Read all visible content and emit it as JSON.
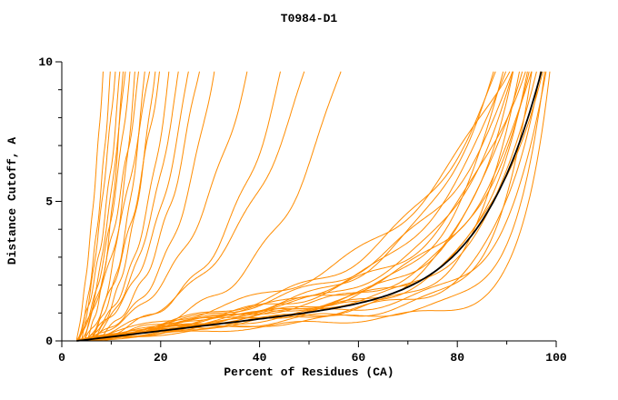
{
  "chart_data": {
    "type": "line",
    "title": "T0984-D1",
    "xlabel": "Percent of Residues (CA)",
    "ylabel": "Distance Cutoff, A",
    "xlim": [
      0,
      100
    ],
    "ylim": [
      0,
      10
    ],
    "x_major_ticks": [
      0,
      20,
      40,
      60,
      80,
      100
    ],
    "x_minor_step": 10,
    "y_major_ticks": [
      0,
      5,
      10
    ],
    "y_minor_step": 1,
    "grid": false,
    "legend": "none",
    "colors": {
      "model": "#FF8C00",
      "reference": "#000000",
      "axis": "#000000"
    },
    "curve_model": "y(u)=lin*u+(10-lin)*u^pow (+small sinusoidal jitter jit,ph); x(u)=x0+(x_end-x0)*u, u in [0,1]; curve clipped at y_top",
    "y_top": 9.65,
    "reference_series": {
      "name": "reference",
      "x0": 3.0,
      "x_end": 97.5,
      "lin": 2.0,
      "pow": 8.0,
      "jit": 0,
      "ph": 0
    },
    "series": [
      {
        "name": "model-01",
        "x0": 3.0,
        "x_end": 8.5,
        "lin": 5.0,
        "pow": 2.0,
        "jit": 0.15,
        "ph": 1.0
      },
      {
        "name": "model-02",
        "x0": 3.5,
        "x_end": 10.0,
        "lin": 4.5,
        "pow": 2.2,
        "jit": 0.2,
        "ph": 2.0
      },
      {
        "name": "model-03",
        "x0": 4.0,
        "x_end": 11.0,
        "lin": 5.5,
        "pow": 1.8,
        "jit": 0.15,
        "ph": 0.5
      },
      {
        "name": "model-04",
        "x0": 3.0,
        "x_end": 12.0,
        "lin": 4.0,
        "pow": 2.5,
        "jit": 0.25,
        "ph": 3.0
      },
      {
        "name": "model-05",
        "x0": 5.0,
        "x_end": 12.5,
        "lin": 3.5,
        "pow": 2.8,
        "jit": 0.2,
        "ph": 4.0
      },
      {
        "name": "model-06",
        "x0": 4.5,
        "x_end": 13.0,
        "lin": 5.0,
        "pow": 2.0,
        "jit": 0.1,
        "ph": 5.0
      },
      {
        "name": "model-07",
        "x0": 3.5,
        "x_end": 14.0,
        "lin": 4.2,
        "pow": 2.4,
        "jit": 0.2,
        "ph": 0.8
      },
      {
        "name": "model-08",
        "x0": 6.0,
        "x_end": 15.0,
        "lin": 3.8,
        "pow": 2.6,
        "jit": 0.15,
        "ph": 1.8
      },
      {
        "name": "model-09",
        "x0": 4.0,
        "x_end": 16.0,
        "lin": 4.8,
        "pow": 2.1,
        "jit": 0.25,
        "ph": 2.6
      },
      {
        "name": "model-10",
        "x0": 5.5,
        "x_end": 17.0,
        "lin": 3.4,
        "pow": 3.0,
        "jit": 0.2,
        "ph": 3.4
      },
      {
        "name": "model-11",
        "x0": 3.0,
        "x_end": 18.0,
        "lin": 4.4,
        "pow": 2.3,
        "jit": 0.15,
        "ph": 4.2
      },
      {
        "name": "model-12",
        "x0": 6.5,
        "x_end": 19.0,
        "lin": 3.6,
        "pow": 2.7,
        "jit": 0.2,
        "ph": 5.2
      },
      {
        "name": "model-13",
        "x0": 4.5,
        "x_end": 20.0,
        "lin": 4.0,
        "pow": 2.5,
        "jit": 0.25,
        "ph": 0.3
      },
      {
        "name": "model-14",
        "x0": 5.0,
        "x_end": 22.0,
        "lin": 3.2,
        "pow": 3.1,
        "jit": 0.2,
        "ph": 1.3
      },
      {
        "name": "model-15",
        "x0": 6.0,
        "x_end": 24.0,
        "lin": 3.6,
        "pow": 2.8,
        "jit": 0.15,
        "ph": 2.3
      },
      {
        "name": "model-16",
        "x0": 4.0,
        "x_end": 26.0,
        "lin": 3.0,
        "pow": 3.2,
        "jit": 0.2,
        "ph": 3.3
      },
      {
        "name": "model-17",
        "x0": 7.0,
        "x_end": 28.0,
        "lin": 3.4,
        "pow": 2.9,
        "jit": 0.25,
        "ph": 4.3
      },
      {
        "name": "model-18",
        "x0": 5.5,
        "x_end": 31.0,
        "lin": 2.8,
        "pow": 3.4,
        "jit": 0.2,
        "ph": 5.3
      },
      {
        "name": "model-19",
        "x0": 5.0,
        "x_end": 38.0,
        "lin": 3.0,
        "pow": 3.0,
        "jit": 0.2,
        "ph": 0.6
      },
      {
        "name": "model-20",
        "x0": 6.0,
        "x_end": 45.0,
        "lin": 2.6,
        "pow": 3.4,
        "jit": 0.25,
        "ph": 1.6
      },
      {
        "name": "model-21",
        "x0": 4.5,
        "x_end": 50.0,
        "lin": 2.8,
        "pow": 3.2,
        "jit": 0.2,
        "ph": 2.6
      },
      {
        "name": "model-22",
        "x0": 7.0,
        "x_end": 57.0,
        "lin": 2.4,
        "pow": 3.8,
        "jit": 0.25,
        "ph": 3.6
      },
      {
        "name": "model-23",
        "x0": 3.0,
        "x_end": 88.0,
        "lin": 2.6,
        "pow": 6.0,
        "jit": 0.2,
        "ph": 0.4
      },
      {
        "name": "model-24",
        "x0": 4.0,
        "x_end": 89.0,
        "lin": 3.2,
        "pow": 5.0,
        "jit": 0.25,
        "ph": 1.4
      },
      {
        "name": "model-25",
        "x0": 3.5,
        "x_end": 90.0,
        "lin": 2.2,
        "pow": 8.0,
        "jit": 0.2,
        "ph": 2.4
      },
      {
        "name": "model-26",
        "x0": 5.0,
        "x_end": 90.5,
        "lin": 2.9,
        "pow": 6.0,
        "jit": 0.15,
        "ph": 3.4
      },
      {
        "name": "model-27",
        "x0": 3.0,
        "x_end": 91.0,
        "lin": 3.5,
        "pow": 4.5,
        "jit": 0.25,
        "ph": 4.4
      },
      {
        "name": "model-28",
        "x0": 4.5,
        "x_end": 91.5,
        "lin": 2.0,
        "pow": 9.0,
        "jit": 0.2,
        "ph": 5.4
      },
      {
        "name": "model-29",
        "x0": 3.5,
        "x_end": 92.0,
        "lin": 2.7,
        "pow": 7.0,
        "jit": 0.15,
        "ph": 0.9
      },
      {
        "name": "model-30",
        "x0": 5.5,
        "x_end": 92.5,
        "lin": 3.3,
        "pow": 5.5,
        "jit": 0.25,
        "ph": 1.9
      },
      {
        "name": "model-31",
        "x0": 3.0,
        "x_end": 93.0,
        "lin": 1.8,
        "pow": 11.0,
        "jit": 0.2,
        "ph": 2.9
      },
      {
        "name": "model-32",
        "x0": 4.0,
        "x_end": 93.5,
        "lin": 2.4,
        "pow": 8.0,
        "jit": 0.2,
        "ph": 3.9
      },
      {
        "name": "model-33",
        "x0": 5.0,
        "x_end": 94.0,
        "lin": 3.0,
        "pow": 6.5,
        "jit": 0.25,
        "ph": 4.9
      },
      {
        "name": "model-34",
        "x0": 3.5,
        "x_end": 94.5,
        "lin": 2.1,
        "pow": 10.0,
        "jit": 0.15,
        "ph": 5.9
      },
      {
        "name": "model-35",
        "x0": 4.5,
        "x_end": 95.0,
        "lin": 2.6,
        "pow": 8.5,
        "jit": 0.2,
        "ph": 0.2
      },
      {
        "name": "model-36",
        "x0": 3.0,
        "x_end": 95.5,
        "lin": 1.6,
        "pow": 13.0,
        "jit": 0.2,
        "ph": 1.2
      },
      {
        "name": "model-37",
        "x0": 5.0,
        "x_end": 96.0,
        "lin": 2.9,
        "pow": 7.5,
        "jit": 0.25,
        "ph": 2.2
      },
      {
        "name": "model-38",
        "x0": 3.5,
        "x_end": 96.5,
        "lin": 2.3,
        "pow": 9.5,
        "jit": 0.15,
        "ph": 3.2
      },
      {
        "name": "model-39",
        "x0": 4.0,
        "x_end": 97.0,
        "lin": 1.9,
        "pow": 12.0,
        "jit": 0.2,
        "ph": 4.2
      },
      {
        "name": "model-40",
        "x0": 3.0,
        "x_end": 97.5,
        "lin": 2.5,
        "pow": 9.0,
        "jit": 0.2,
        "ph": 5.0
      },
      {
        "name": "model-41",
        "x0": 4.5,
        "x_end": 98.0,
        "lin": 1.5,
        "pow": 15.0,
        "jit": 0.15,
        "ph": 0.7
      },
      {
        "name": "model-42",
        "x0": 3.5,
        "x_end": 98.5,
        "lin": 2.0,
        "pow": 12.0,
        "jit": 0.2,
        "ph": 1.7
      },
      {
        "name": "model-43",
        "x0": 3.0,
        "x_end": 99.0,
        "lin": 1.3,
        "pow": 18.0,
        "jit": 0.15,
        "ph": 2.7
      }
    ]
  }
}
